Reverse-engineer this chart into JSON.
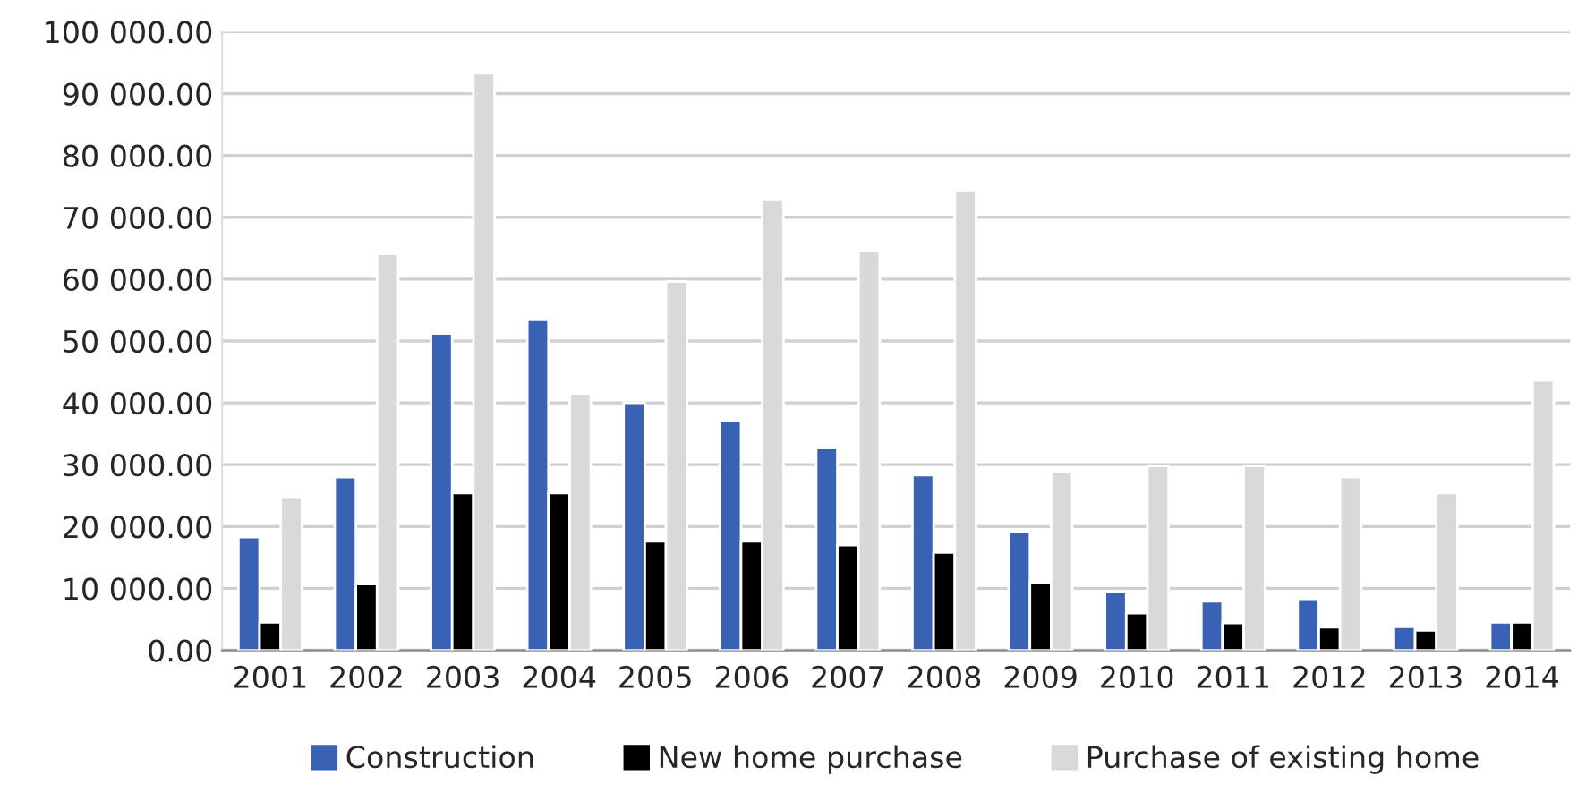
{
  "chart_data": {
    "type": "bar",
    "categories": [
      "2001",
      "2002",
      "2003",
      "2004",
      "2005",
      "2006",
      "2007",
      "2008",
      "2009",
      "2010",
      "2011",
      "2012",
      "2013",
      "2014"
    ],
    "series": [
      {
        "name": "Construction",
        "color": "#3a62b4",
        "values": [
          18300,
          28000,
          51200,
          53400,
          40000,
          37100,
          32700,
          28300,
          19200,
          9500,
          7900,
          8300,
          3800,
          4500
        ]
      },
      {
        "name": "New home purchase",
        "color": "#000000",
        "values": [
          4500,
          10700,
          25400,
          25400,
          17600,
          17600,
          17000,
          15800,
          11000,
          6000,
          4400,
          3700,
          3200,
          4500
        ]
      },
      {
        "name": "Purchase of existing home",
        "color": "#d9d9d9",
        "values": [
          24800,
          64100,
          93300,
          41500,
          59600,
          72800,
          64600,
          74400,
          28900,
          29800,
          29800,
          28000,
          25400,
          43600
        ]
      }
    ],
    "ylim": [
      0,
      100000
    ],
    "yticks": [
      {
        "value": 0,
        "label": "0.00"
      },
      {
        "value": 10000,
        "label": "10 000.00"
      },
      {
        "value": 20000,
        "label": "20 000.00"
      },
      {
        "value": 30000,
        "label": "30 000.00"
      },
      {
        "value": 40000,
        "label": "40 000.00"
      },
      {
        "value": 50000,
        "label": "50 000.00"
      },
      {
        "value": 60000,
        "label": "60 000.00"
      },
      {
        "value": 70000,
        "label": "70 000.00"
      },
      {
        "value": 80000,
        "label": "80 000.00"
      },
      {
        "value": 90000,
        "label": "90 000.00"
      },
      {
        "value": 100000,
        "label": "100 000.00"
      }
    ],
    "grid": "y",
    "legend": "bottom"
  }
}
